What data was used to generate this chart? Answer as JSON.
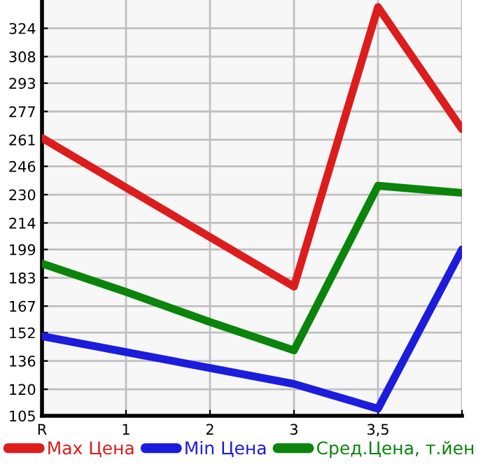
{
  "chart_data": {
    "type": "line",
    "categories": [
      "R",
      "1",
      "2",
      "3",
      "3,5",
      null
    ],
    "ylim": [
      105,
      340
    ],
    "yticks": [
      105,
      120,
      136,
      152,
      167,
      183,
      199,
      214,
      230,
      246,
      261,
      277,
      293,
      308,
      324
    ],
    "grid": true,
    "legend": "bottom",
    "marker": "none",
    "line_style": "solid",
    "series": [
      {
        "name": "Max Цена",
        "color": "#dd1c1c",
        "values": [
          262,
          234,
          206,
          178,
          336,
          267
        ]
      },
      {
        "name": "Min Цена",
        "color": "#1c1cdd",
        "values": [
          150,
          141,
          132,
          123,
          109,
          199
        ]
      },
      {
        "name": "Сред.Цена, т.йен",
        "color": "#0a840a",
        "values": [
          191,
          175,
          158,
          142,
          235,
          231
        ]
      }
    ]
  }
}
